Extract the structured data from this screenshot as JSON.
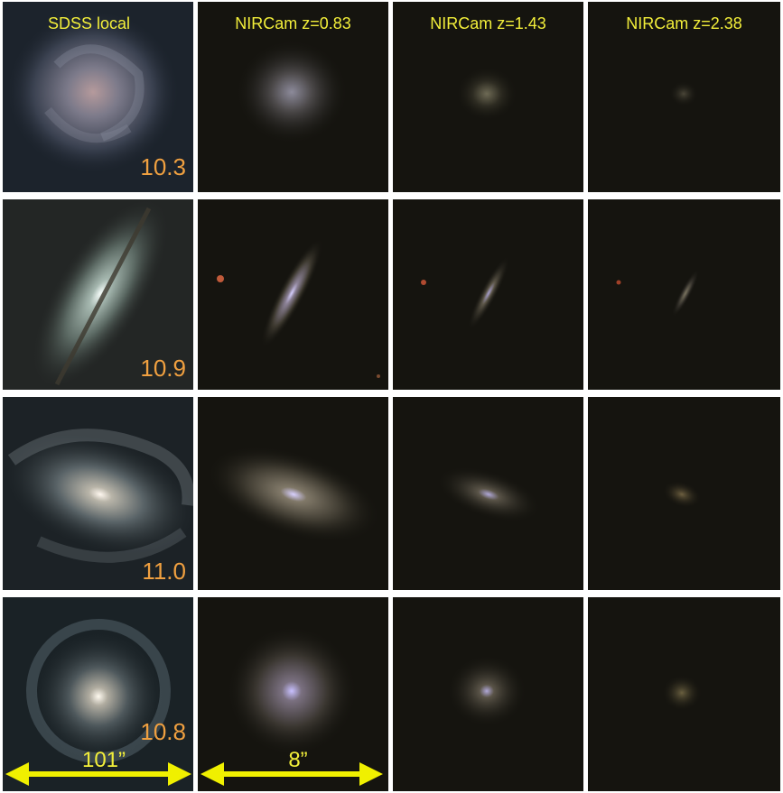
{
  "columns": [
    {
      "label": "SDSS local"
    },
    {
      "label": "NIRCam z=0.83"
    },
    {
      "label": "NIRCam z=1.43"
    },
    {
      "label": "NIRCam z=2.38"
    }
  ],
  "rows": [
    {
      "mass": "10.3",
      "galaxy": "face-on-spiral"
    },
    {
      "mass": "10.9",
      "galaxy": "edge-on-disk"
    },
    {
      "mass": "11.0",
      "galaxy": "barred-spiral"
    },
    {
      "mass": "10.8",
      "galaxy": "ringed-spiral"
    }
  ],
  "scale_bars": [
    {
      "label": "101”"
    },
    {
      "label": "8”"
    }
  ],
  "colors": {
    "label": "#f2ee3a",
    "mass": "#f0a040",
    "arrow": "#f0f000",
    "background": "#15140f"
  }
}
